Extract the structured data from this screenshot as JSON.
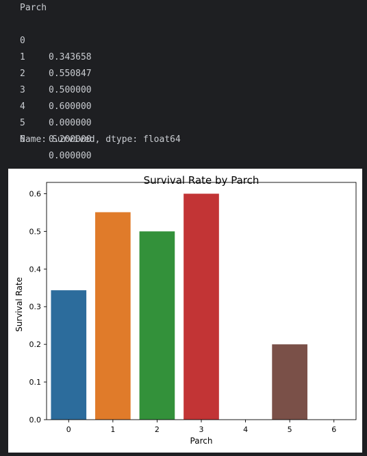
{
  "console": {
    "header": "Parch",
    "rows": [
      {
        "index": "0",
        "value": "0.343658"
      },
      {
        "index": "1",
        "value": "0.550847"
      },
      {
        "index": "2",
        "value": "0.500000"
      },
      {
        "index": "3",
        "value": "0.600000"
      },
      {
        "index": "4",
        "value": "0.000000"
      },
      {
        "index": "5",
        "value": "0.200000"
      },
      {
        "index": "6",
        "value": "0.000000"
      }
    ],
    "footer": "Name: Survived, dtype: float64"
  },
  "chart_data": {
    "type": "bar",
    "title": "Survival Rate by Parch",
    "xlabel": "Parch",
    "ylabel": "Survival Rate",
    "categories": [
      "0",
      "1",
      "2",
      "3",
      "4",
      "5",
      "6"
    ],
    "values": [
      0.343658,
      0.550847,
      0.5,
      0.6,
      0.0,
      0.2,
      0.0
    ],
    "colors": [
      "#2c6c9c",
      "#e07b2a",
      "#33913a",
      "#c23435",
      "#8a63b0",
      "#7a5048",
      "#d67fc0"
    ],
    "ylim": [
      0,
      0.63
    ],
    "yticks": [
      0.0,
      0.1,
      0.2,
      0.3,
      0.4,
      0.5,
      0.6
    ],
    "ytick_labels": [
      "0.0",
      "0.1",
      "0.2",
      "0.3",
      "0.4",
      "0.5",
      "0.6"
    ],
    "grid": false,
    "legend": "none"
  }
}
